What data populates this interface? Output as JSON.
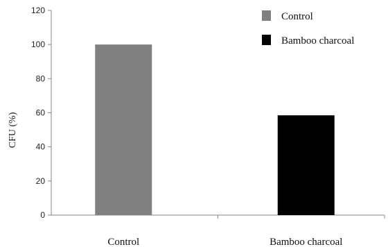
{
  "chart_data": {
    "type": "bar",
    "title": "",
    "xlabel": "",
    "ylabel": "CFU (%)",
    "categories": [
      "Control",
      "Bamboo charcoal"
    ],
    "values": [
      100,
      58.5
    ],
    "colors": [
      "#808080",
      "#000000"
    ],
    "ylim": [
      0,
      120
    ],
    "yticks": [
      0,
      20,
      40,
      60,
      80,
      100,
      120
    ],
    "grid": false,
    "legend": {
      "position": "top-right",
      "entries": [
        "Control",
        "Bamboo charcoal"
      ]
    }
  }
}
